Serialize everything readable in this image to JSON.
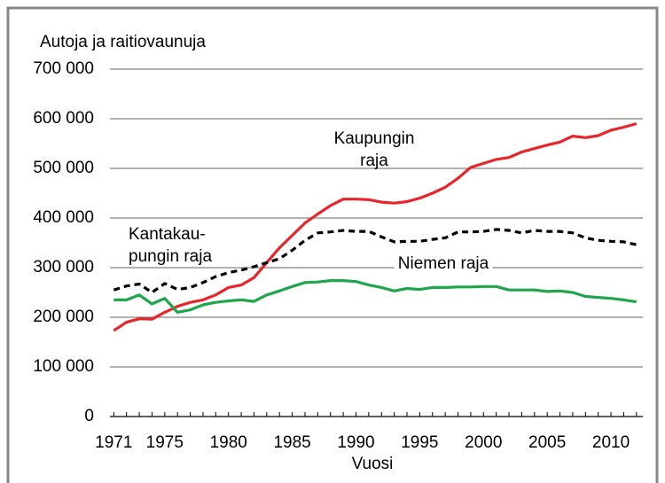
{
  "chart_data": {
    "type": "line",
    "y_label": "Autoja ja raitiovaunuja",
    "x_label": "Vuosi",
    "x": [
      1971,
      1972,
      1973,
      1974,
      1975,
      1976,
      1977,
      1978,
      1979,
      1980,
      1981,
      1982,
      1983,
      1984,
      1985,
      1986,
      1987,
      1988,
      1989,
      1990,
      1991,
      1992,
      1993,
      1994,
      1995,
      1996,
      1997,
      1998,
      1999,
      2000,
      2001,
      2002,
      2003,
      2004,
      2005,
      2006,
      2007,
      2008,
      2009,
      2010,
      2011,
      2012
    ],
    "series": [
      {
        "label": [
          "Kaupungin",
          "raja"
        ],
        "color": "#e8262a",
        "dash": false,
        "values": [
          173000,
          190000,
          197000,
          196000,
          210000,
          222000,
          230000,
          235000,
          245000,
          260000,
          265000,
          280000,
          310000,
          340000,
          365000,
          390000,
          408000,
          425000,
          438000,
          438000,
          437000,
          432000,
          430000,
          433000,
          440000,
          450000,
          462000,
          480000,
          502000,
          510000,
          518000,
          522000,
          533000,
          540000,
          547000,
          553000,
          565000,
          562000,
          566000,
          577000,
          583000,
          590000
        ]
      },
      {
        "label": [
          "Kantakau-",
          "pungin raja"
        ],
        "color": "#000000",
        "dash": true,
        "values": [
          255000,
          263000,
          267000,
          250000,
          268000,
          256000,
          260000,
          270000,
          282000,
          290000,
          295000,
          302000,
          310000,
          318000,
          335000,
          355000,
          370000,
          372000,
          375000,
          373000,
          373000,
          362000,
          352000,
          353000,
          353000,
          357000,
          360000,
          372000,
          372000,
          373000,
          377000,
          375000,
          370000,
          375000,
          373000,
          373000,
          370000,
          360000,
          355000,
          353000,
          352000,
          346000
        ]
      },
      {
        "label": [
          "Niemen raja"
        ],
        "color": "#1fa64a",
        "dash": false,
        "values": [
          235000,
          235000,
          245000,
          227000,
          238000,
          210000,
          215000,
          225000,
          230000,
          233000,
          235000,
          232000,
          245000,
          253000,
          262000,
          270000,
          271000,
          274000,
          274000,
          272000,
          265000,
          260000,
          253000,
          258000,
          256000,
          260000,
          260000,
          261000,
          261000,
          262000,
          262000,
          255000,
          255000,
          255000,
          252000,
          253000,
          250000,
          242000,
          240000,
          238000,
          235000,
          231000
        ]
      }
    ],
    "xlim": [
      1970.7,
      2012.5
    ],
    "xticks": [
      1971,
      1975,
      1980,
      1985,
      1990,
      1995,
      2000,
      2005,
      2010
    ],
    "minor_xticks": [
      1971,
      1972,
      1973,
      1974,
      1975,
      1976,
      1977,
      1978,
      1979,
      1980,
      1981,
      1982,
      1983,
      1984,
      1985,
      1986,
      1987,
      1988,
      1989,
      1990,
      1991,
      1992,
      1993,
      1994,
      1995,
      1996,
      1997,
      1998,
      1999,
      2000,
      2001,
      2002,
      2003,
      2004,
      2005,
      2006,
      2007,
      2008,
      2009,
      2010,
      2011,
      2012
    ],
    "ylim": [
      0,
      700000
    ],
    "yticks": [
      0,
      {
        "value": 100000,
        "label": "100 000"
      },
      {
        "value": 200000,
        "label": "200 000"
      },
      {
        "value": 300000,
        "label": "300 000"
      },
      {
        "value": 400000,
        "label": "400 000"
      },
      {
        "value": 500000,
        "label": "500 000"
      },
      {
        "value": 600000,
        "label": "600 000"
      },
      {
        "value": 700000,
        "label": "700 000"
      }
    ],
    "grid": true
  }
}
